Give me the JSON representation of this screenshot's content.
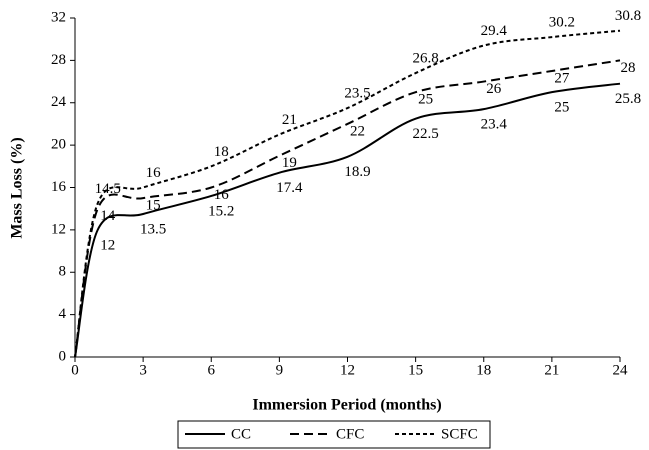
{
  "chart_data": {
    "type": "line",
    "x_label": "Immersion Period (months)",
    "y_label": "Mass Loss (%)",
    "x": [
      0,
      1,
      3,
      6,
      9,
      12,
      15,
      18,
      21,
      24
    ],
    "series": [
      {
        "name": "CC",
        "color": "#000000",
        "dash": "solid",
        "values": [
          0,
          12,
          13.5,
          15.2,
          17.4,
          18.9,
          22.5,
          23.4,
          25,
          25.8
        ],
        "value_labels": [
          null,
          12,
          13.5,
          15.2,
          17.4,
          18.9,
          22.5,
          23.4,
          25,
          25.8
        ]
      },
      {
        "name": "CFC",
        "color": "#000000",
        "dash": "dashed",
        "values": [
          0,
          14,
          15,
          16,
          19,
          22,
          25,
          26,
          27,
          28
        ],
        "value_labels": [
          null,
          14,
          15,
          16,
          19,
          22,
          25,
          26,
          27,
          28
        ]
      },
      {
        "name": "SCFC",
        "color": "#000000",
        "dash": "dotted",
        "values": [
          0,
          14.5,
          16,
          18,
          21,
          23.5,
          26.8,
          29.4,
          30.2,
          30.8
        ],
        "value_labels": [
          null,
          14.5,
          16,
          18,
          21,
          23.5,
          26.8,
          29.4,
          30.2,
          30.8
        ]
      }
    ],
    "xlim": [
      0,
      24
    ],
    "xticks": [
      0,
      3,
      6,
      9,
      12,
      15,
      18,
      21,
      24
    ],
    "ylim": [
      0,
      32
    ],
    "yticks": [
      0,
      4,
      8,
      12,
      16,
      20,
      24,
      28,
      32
    ],
    "legend": "bottom"
  }
}
